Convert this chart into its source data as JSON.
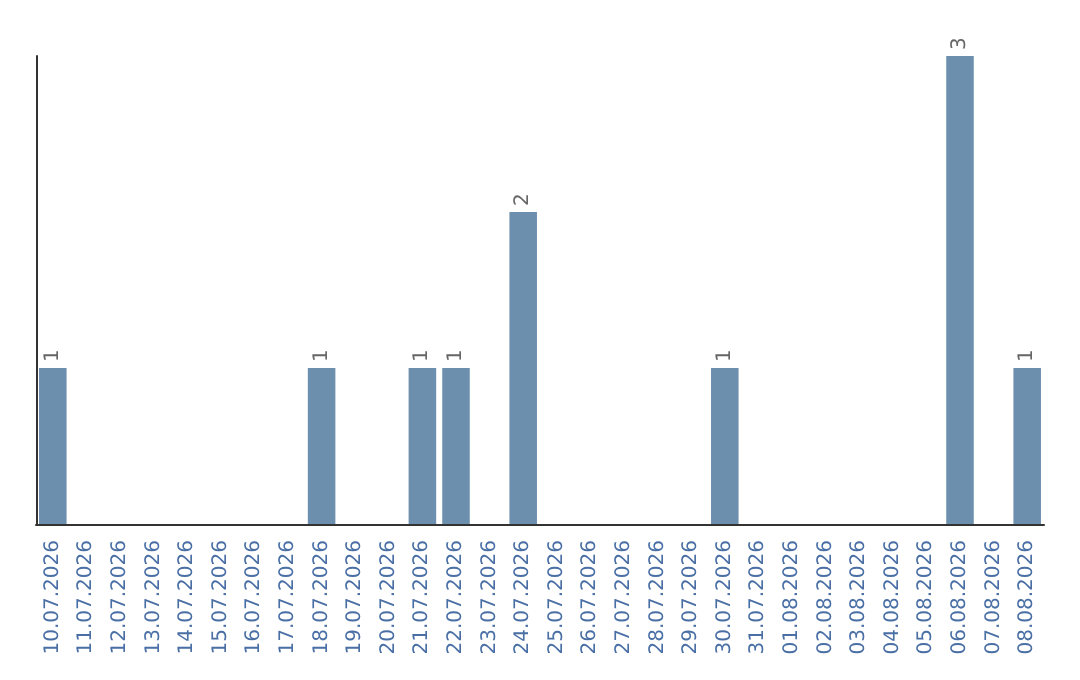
{
  "chart_data": {
    "type": "bar",
    "categories": [
      "10.07.2026",
      "11.07.2026",
      "12.07.2026",
      "13.07.2026",
      "14.07.2026",
      "15.07.2026",
      "16.07.2026",
      "17.07.2026",
      "18.07.2026",
      "19.07.2026",
      "20.07.2026",
      "21.07.2026",
      "22.07.2026",
      "23.07.2026",
      "24.07.2026",
      "25.07.2026",
      "26.07.2026",
      "27.07.2026",
      "28.07.2026",
      "29.07.2026",
      "30.07.2026",
      "31.07.2026",
      "01.08.2026",
      "02.08.2026",
      "03.08.2026",
      "04.08.2026",
      "05.08.2026",
      "06.08.2026",
      "07.08.2026",
      "08.08.2026"
    ],
    "values": [
      1,
      0,
      0,
      0,
      0,
      0,
      0,
      0,
      1,
      0,
      0,
      1,
      1,
      0,
      2,
      0,
      0,
      0,
      0,
      0,
      1,
      0,
      0,
      0,
      0,
      0,
      0,
      3,
      0,
      1
    ],
    "value_labels": [
      "1",
      null,
      null,
      null,
      null,
      null,
      null,
      null,
      "1",
      null,
      null,
      "1",
      "1",
      null,
      "2",
      null,
      null,
      null,
      null,
      null,
      "1",
      null,
      null,
      null,
      null,
      null,
      null,
      "3",
      null,
      "1"
    ],
    "color": "#6d8fae",
    "grid": false,
    "tick_labels": "x"
  }
}
